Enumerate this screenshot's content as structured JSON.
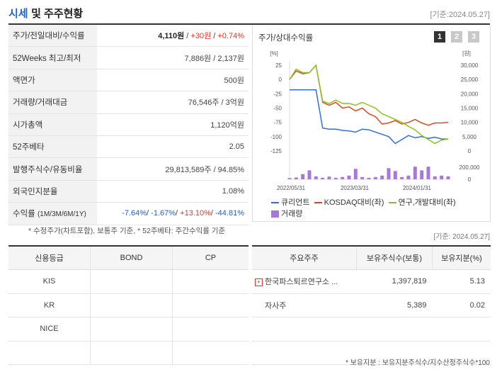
{
  "header": {
    "title_a": "시세",
    "title_b": "및 주주현황",
    "date": "[기준:2024.05.27]"
  },
  "quote": {
    "price_label": "주가/전일대비/수익률",
    "price": "4,110원",
    "change": "+30원",
    "change_pct": "+0.74%",
    "w52_label": "52Weeks 최고/최저",
    "w52_value": "7,886원 / 2,137원",
    "par_label": "액면가",
    "par_value": "500원",
    "volume_label": "거래량/거래대금",
    "volume_value": "76,546주 / 3억원",
    "mcap_label": "시가총액",
    "mcap_value": "1,120억원",
    "beta_label": "52주베타",
    "beta_value": "2.05",
    "shares_label": "발행주식수/유동비율",
    "shares_value": "29,813,589주 / 94.85%",
    "foreign_label": "외국인지분율",
    "foreign_value": "1.08%",
    "return_label": "수익률",
    "return_periods": "(1M/3M/6M/1Y)",
    "r1m": "-7.64%",
    "r3m": "-1.67%",
    "r6m": "+13.10%",
    "r1y": "-44.81%"
  },
  "note": "* 수정주가(차트포함), 보통주 기준, * 52주베타: 주간수익률 기준",
  "chart": {
    "title": "주가/상대수익률",
    "tabs": [
      "1",
      "2",
      "3"
    ],
    "left_unit": "[%]",
    "right_unit": "[원]",
    "left_ticks": [
      "25",
      "0",
      "-25",
      "-50",
      "-75",
      "-100",
      "-125"
    ],
    "right_ticks": [
      "30,000",
      "25,000",
      "20,000",
      "15,000",
      "10,000",
      "5,000",
      "0"
    ],
    "vol_tick": "200,000",
    "vol_zero": "0",
    "x_ticks": [
      "2022/05/31",
      "2023/03/31",
      "2024/01/31"
    ],
    "legend": [
      "큐리언트",
      "KOSDAQ대비(좌)",
      "연구,개발대비(좌)",
      "거래량"
    ],
    "colors": {
      "company": "#2f6fe0",
      "kosdaq": "#d94a1e",
      "rnd": "#8dc21f",
      "volume": "#a679d8"
    }
  },
  "chart_data": {
    "type": "line",
    "x": [
      0,
      1,
      2,
      3,
      4,
      5,
      6,
      7,
      8,
      9,
      10,
      11,
      12,
      13,
      14,
      15,
      16,
      17,
      18,
      19,
      20,
      21,
      22,
      23,
      24
    ],
    "series": [
      {
        "name": "큐리언트",
        "values": [
          -18,
          -18,
          -18,
          -18,
          -18,
          -85,
          -87,
          -87,
          -89,
          -90,
          -92,
          -87,
          -88,
          -92,
          -96,
          -100,
          -112,
          -105,
          -98,
          -102,
          -100,
          -103,
          -101,
          -104,
          -104
        ]
      },
      {
        "name": "KOSDAQ대비(좌)",
        "values": [
          0,
          15,
          10,
          12,
          25,
          -40,
          -45,
          -40,
          -50,
          -48,
          -55,
          -50,
          -60,
          -65,
          -78,
          -76,
          -72,
          -78,
          -75,
          -70,
          -76,
          -80,
          -76,
          -76,
          -75
        ]
      },
      {
        "name": "연구,개발대비(좌)",
        "values": [
          0,
          18,
          12,
          12,
          25,
          -38,
          -42,
          -36,
          -42,
          -42,
          -45,
          -40,
          -45,
          -50,
          -60,
          -65,
          -70,
          -75,
          -82,
          -88,
          -98,
          -105,
          -112,
          -106,
          -104
        ]
      }
    ],
    "volume": [
      0.08,
      0.12,
      0.35,
      0.6,
      0.2,
      0.1,
      0.18,
      0.1,
      0.15,
      0.25,
      0.7,
      0.15,
      0.1,
      0.15,
      0.25,
      0.75,
      0.55,
      0.15,
      0.25,
      0.85,
      0.6,
      0.85,
      0.2,
      0.25,
      0.2
    ],
    "left_ylim": [
      -125,
      25
    ],
    "right_ylim": [
      0,
      30000
    ]
  },
  "date2": "[기준: 2024.05.27]",
  "credit": {
    "headers": [
      "신용등급",
      "BOND",
      "CP"
    ],
    "rows": [
      [
        "KIS",
        "",
        ""
      ],
      [
        "KR",
        "",
        ""
      ],
      [
        "NICE",
        "",
        ""
      ],
      [
        "",
        "",
        ""
      ]
    ]
  },
  "holders": {
    "headers": [
      "주요주주",
      "보유주식수(보통)",
      "보유지분(%)"
    ],
    "rows": [
      {
        "name": "한국파스퇴르연구소 ...",
        "shares": "1,397,819",
        "pct": "5.13"
      },
      {
        "name": "자사주",
        "shares": "5,389",
        "pct": "0.02"
      },
      {
        "name": "",
        "shares": "",
        "pct": ""
      },
      {
        "name": "",
        "shares": "",
        "pct": ""
      }
    ]
  },
  "foot": "* 보유지분 : 보유지분주식수/지수산정주식수*100"
}
